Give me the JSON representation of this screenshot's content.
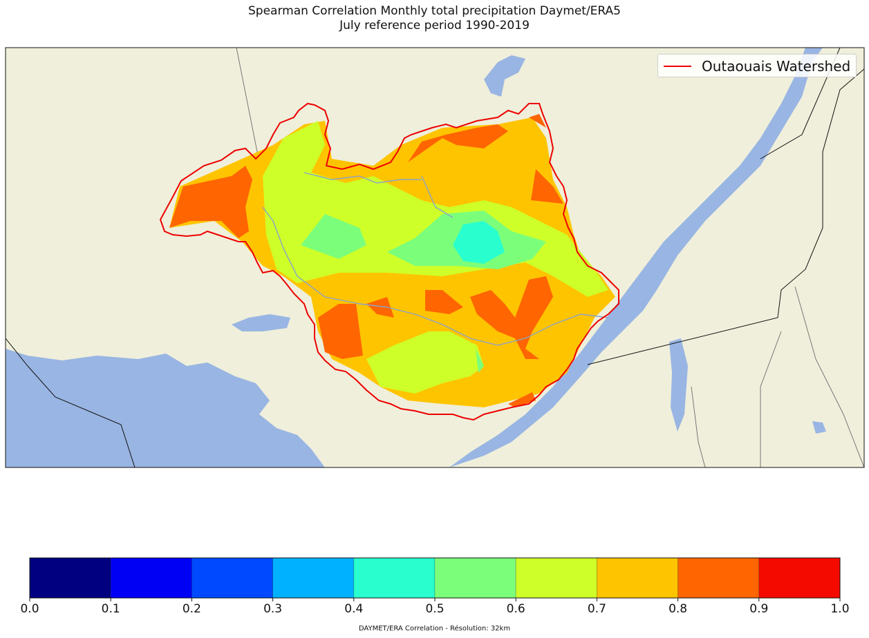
{
  "title": {
    "line1": "Spearman Correlation Monthly total precipitation Daymet/ERA5",
    "line2": "July reference period 1990-2019"
  },
  "legend": {
    "label": "Outaouais Watershed",
    "line_color": "#ee0000"
  },
  "map": {
    "land_color": "#efefdb",
    "water_color": "#99b5e3",
    "watershed_outline_color": "#ee0000"
  },
  "colorbar": {
    "ticks": [
      "0.0",
      "0.1",
      "0.2",
      "0.3",
      "0.4",
      "0.5",
      "0.6",
      "0.7",
      "0.8",
      "0.9",
      "1.0"
    ],
    "colors": [
      "#000080",
      "#0000f5",
      "#0049ff",
      "#00b1ff",
      "#29ffce",
      "#7bff7b",
      "#ceff29",
      "#ffc400",
      "#ff6500",
      "#f50a00"
    ]
  },
  "caption": "DAYMET/ERA Correlation - Résolution: 32km"
}
